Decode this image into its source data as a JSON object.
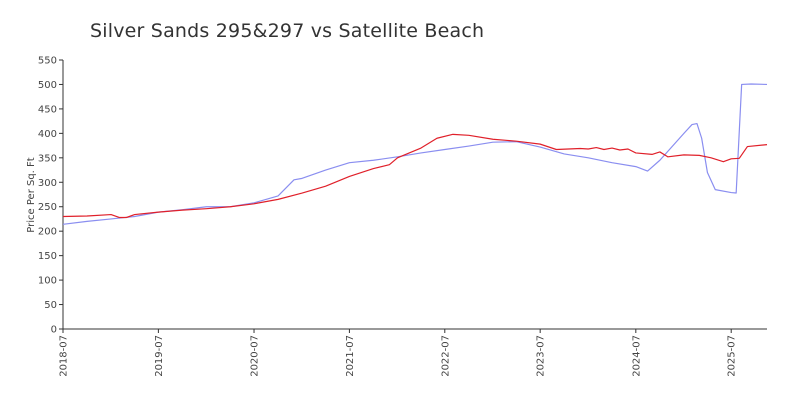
{
  "chart_data": {
    "type": "line",
    "title": "Silver Sands 295&297 vs Satellite Beach",
    "xlabel": "",
    "ylabel": "Price Per Sq. Ft",
    "ylim": [
      0,
      550
    ],
    "yticks": [
      "0",
      "50",
      "100",
      "150",
      "200",
      "250",
      "300",
      "350",
      "400",
      "450",
      "500",
      "550"
    ],
    "xticks": [
      "2018-07",
      "2019-07",
      "2020-07",
      "2021-07",
      "2022-07",
      "2023-07",
      "2024-07",
      "2025-07"
    ],
    "xlim": [
      "2018-07-01",
      "2025-11-15"
    ],
    "grid": false,
    "legend": "none",
    "series": [
      {
        "color": "#8a8ef0",
        "points": [
          [
            "2018-07-01",
            214
          ],
          [
            "2018-10-01",
            220
          ],
          [
            "2019-01-01",
            225
          ],
          [
            "2019-04-01",
            230
          ],
          [
            "2019-07-01",
            239
          ],
          [
            "2019-10-01",
            244
          ],
          [
            "2020-01-01",
            250
          ],
          [
            "2020-04-01",
            250
          ],
          [
            "2020-07-01",
            258
          ],
          [
            "2020-10-01",
            272
          ],
          [
            "2020-12-01",
            305
          ],
          [
            "2021-01-01",
            308
          ],
          [
            "2021-04-01",
            325
          ],
          [
            "2021-07-01",
            340
          ],
          [
            "2021-10-01",
            345
          ],
          [
            "2022-01-01",
            352
          ],
          [
            "2022-04-01",
            360
          ],
          [
            "2022-07-01",
            367
          ],
          [
            "2022-10-01",
            374
          ],
          [
            "2023-01-01",
            382
          ],
          [
            "2023-04-01",
            383
          ],
          [
            "2023-07-01",
            372
          ],
          [
            "2023-10-01",
            358
          ],
          [
            "2024-01-01",
            350
          ],
          [
            "2024-04-01",
            340
          ],
          [
            "2024-07-01",
            332
          ],
          [
            "2024-08-15",
            323
          ],
          [
            "2024-10-01",
            345
          ],
          [
            "2025-01-01",
            400
          ],
          [
            "2025-02-01",
            418
          ],
          [
            "2025-02-20",
            420
          ],
          [
            "2025-03-10",
            390
          ],
          [
            "2025-04-01",
            320
          ],
          [
            "2025-05-01",
            285
          ],
          [
            "2025-07-01",
            279
          ],
          [
            "2025-07-20",
            278
          ],
          [
            "2025-08-10",
            500
          ],
          [
            "2025-09-15",
            501
          ],
          [
            "2025-11-15",
            500
          ]
        ]
      },
      {
        "color": "#e0202a",
        "points": [
          [
            "2018-07-01",
            230
          ],
          [
            "2018-10-01",
            231
          ],
          [
            "2019-01-01",
            234
          ],
          [
            "2019-02-01",
            228
          ],
          [
            "2019-03-01",
            228
          ],
          [
            "2019-04-01",
            234
          ],
          [
            "2019-07-01",
            239
          ],
          [
            "2019-10-01",
            243
          ],
          [
            "2020-01-01",
            246
          ],
          [
            "2020-04-01",
            250
          ],
          [
            "2020-07-01",
            256
          ],
          [
            "2020-10-01",
            265
          ],
          [
            "2021-01-01",
            278
          ],
          [
            "2021-04-01",
            292
          ],
          [
            "2021-07-01",
            312
          ],
          [
            "2021-10-01",
            328
          ],
          [
            "2021-12-01",
            336
          ],
          [
            "2022-01-01",
            350
          ],
          [
            "2022-04-01",
            370
          ],
          [
            "2022-06-01",
            390
          ],
          [
            "2022-08-01",
            398
          ],
          [
            "2022-10-01",
            396
          ],
          [
            "2023-01-01",
            388
          ],
          [
            "2023-04-01",
            384
          ],
          [
            "2023-07-01",
            378
          ],
          [
            "2023-09-01",
            367
          ],
          [
            "2023-12-01",
            369
          ],
          [
            "2024-01-01",
            368
          ],
          [
            "2024-02-01",
            371
          ],
          [
            "2024-03-01",
            367
          ],
          [
            "2024-04-01",
            370
          ],
          [
            "2024-05-01",
            366
          ],
          [
            "2024-06-01",
            368
          ],
          [
            "2024-07-01",
            360
          ],
          [
            "2024-09-01",
            357
          ],
          [
            "2024-10-01",
            362
          ],
          [
            "2024-11-01",
            352
          ],
          [
            "2025-01-01",
            356
          ],
          [
            "2025-03-01",
            355
          ],
          [
            "2025-04-15",
            350
          ],
          [
            "2025-06-01",
            342
          ],
          [
            "2025-07-01",
            348
          ],
          [
            "2025-08-01",
            349
          ],
          [
            "2025-09-01",
            373
          ],
          [
            "2025-11-15",
            377
          ]
        ]
      }
    ]
  }
}
